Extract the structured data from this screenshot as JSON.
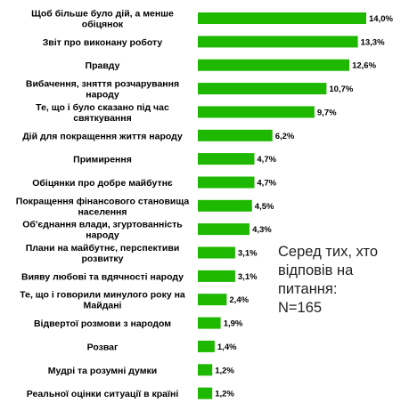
{
  "chart_data": {
    "type": "bar",
    "orientation": "horizontal",
    "value_unit": "%",
    "decimal_comma": true,
    "bar_color": "#1fb800",
    "categories": [
      [
        "Щоб більше було дій, а менше",
        "обіцянок"
      ],
      [
        "Звіт про виконану роботу"
      ],
      [
        "Правду"
      ],
      [
        "Вибачення, зняття розчарування",
        "народу"
      ],
      [
        "Те, що і було сказано під час",
        "святкування"
      ],
      [
        "Дій для покращення життя народу"
      ],
      [
        "Примирення"
      ],
      [
        "Обіцянки про добре майбутнє"
      ],
      [
        "Покращення фінансового становища",
        "населення"
      ],
      [
        "Об'єднання влади, згуртованність",
        "народу"
      ],
      [
        "Плани на майбутнє, перспективи",
        "розвитку"
      ],
      [
        "Вияву любові та вдячності народу"
      ],
      [
        "Те, що і говорили минулого року на",
        "Майдані"
      ],
      [
        "Відвертої розмови з народом"
      ],
      [
        "Розваг"
      ],
      [
        "Мудрі та розумні думки"
      ],
      [
        "Реальної оцінки ситуації в країні"
      ]
    ],
    "values": [
      14.0,
      13.3,
      12.6,
      10.7,
      9.7,
      6.2,
      4.7,
      4.7,
      4.5,
      4.3,
      3.1,
      3.1,
      2.4,
      1.9,
      1.4,
      1.2,
      1.2
    ],
    "value_labels": [
      "14,0%",
      "13,3%",
      "12,6%",
      "10,7%",
      "9,7%",
      "6,2%",
      "4,7%",
      "4,7%",
      "4,5%",
      "4,3%",
      "3,1%",
      "3,1%",
      "2,4%",
      "1,9%",
      "1,4%",
      "1,2%",
      "1,2%"
    ],
    "xlim": [
      0,
      14.0
    ],
    "grid": false,
    "legend": "none"
  },
  "note": {
    "text": "Серед тих, хто\nвідповів на\nпитання:\nN=165"
  }
}
